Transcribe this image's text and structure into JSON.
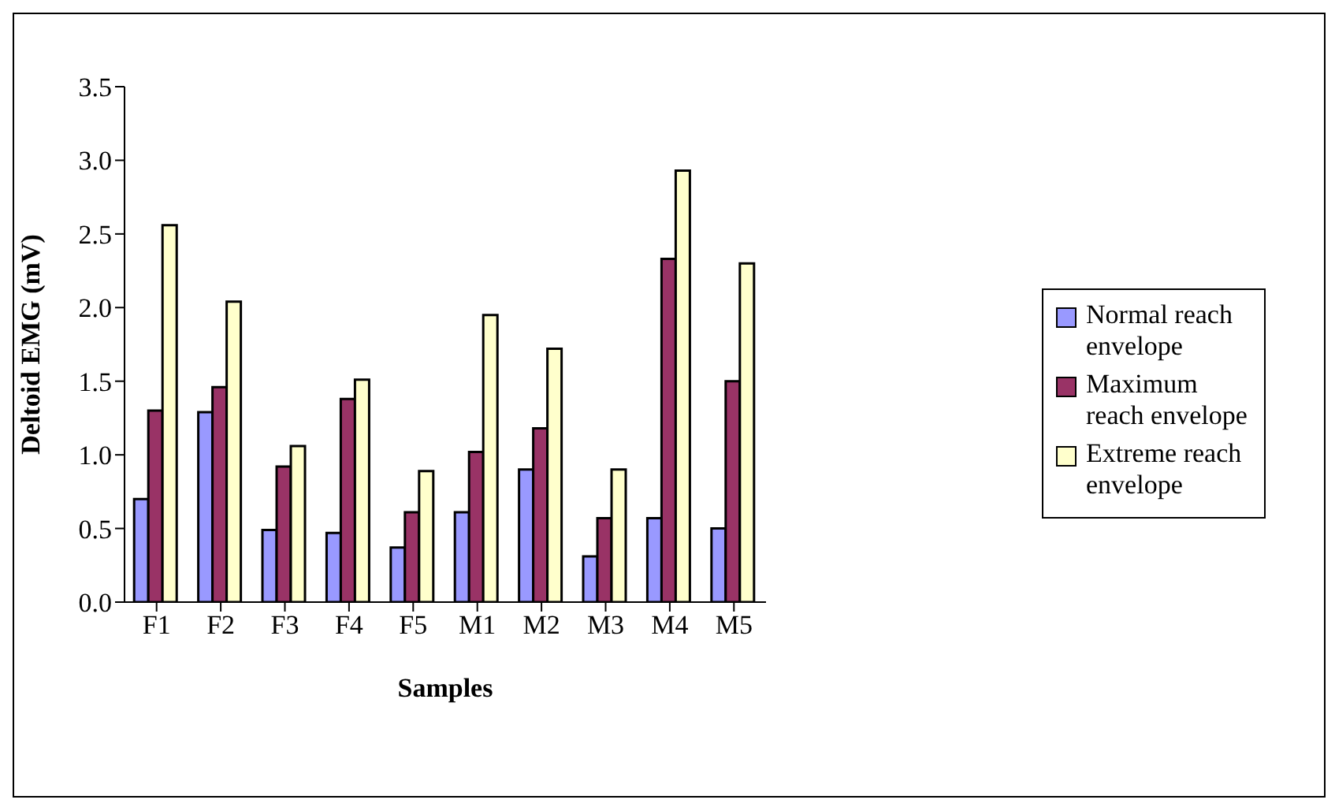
{
  "chart_data": {
    "type": "bar",
    "xlabel": "Samples",
    "ylabel": "Deltoid EMG (mV)",
    "categories": [
      "F1",
      "F2",
      "F3",
      "F4",
      "F5",
      "M1",
      "M2",
      "M3",
      "M4",
      "M5"
    ],
    "series": [
      {
        "name": "Normal reach envelope",
        "color": "#9999ff",
        "values": [
          0.7,
          1.29,
          0.49,
          0.47,
          0.37,
          0.61,
          0.9,
          0.31,
          0.57,
          0.5
        ]
      },
      {
        "name": "Maximum reach envelope",
        "color": "#993366",
        "values": [
          1.3,
          1.46,
          0.92,
          1.38,
          0.61,
          1.02,
          1.18,
          0.57,
          2.33,
          1.5
        ]
      },
      {
        "name": "Extreme reach envelope",
        "color": "#ffffcc",
        "values": [
          2.56,
          2.04,
          1.06,
          1.51,
          0.89,
          1.95,
          1.72,
          0.9,
          2.93,
          2.3
        ]
      }
    ],
    "ylim": [
      0,
      3.5
    ],
    "yticks": [
      {
        "value": 0,
        "label": "0.0"
      },
      {
        "value": 0.5,
        "label": "0.5"
      },
      {
        "value": 1,
        "label": "1.0"
      },
      {
        "value": 1.5,
        "label": "1.5"
      },
      {
        "value": 2,
        "label": "2.0"
      },
      {
        "value": 2.5,
        "label": "2.5"
      },
      {
        "value": 3,
        "label": "3.0"
      },
      {
        "value": 3.5,
        "label": "3.5"
      }
    ],
    "grid": false,
    "legend": "right"
  }
}
